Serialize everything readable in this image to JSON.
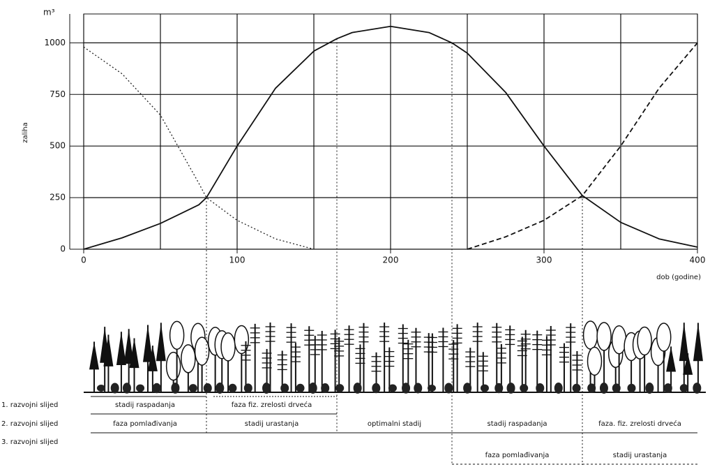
{
  "chart_data": {
    "type": "line",
    "y_unit": "m³",
    "y_label": "zaliha",
    "x_label": "dob (godine)",
    "x": [
      0,
      25,
      50,
      75,
      80,
      100,
      125,
      150,
      165,
      175,
      200,
      225,
      240,
      250,
      275,
      300,
      325,
      350,
      375,
      400
    ],
    "series": [
      {
        "color": "#222222",
        "dash": "dotted",
        "values": [
          980,
          850,
          650,
          320,
          250,
          140,
          50,
          0,
          null,
          null,
          null,
          null,
          null,
          null,
          null,
          null,
          null,
          null,
          null,
          null
        ]
      },
      {
        "color": "#111111",
        "dash": "solid",
        "values": [
          0,
          55,
          125,
          215,
          250,
          500,
          780,
          960,
          1020,
          1050,
          1080,
          1050,
          1000,
          950,
          760,
          500,
          260,
          130,
          50,
          10
        ]
      },
      {
        "color": "#111111",
        "dash": "dashed",
        "values": [
          null,
          null,
          null,
          null,
          null,
          null,
          null,
          null,
          null,
          null,
          null,
          null,
          null,
          0,
          60,
          140,
          260,
          500,
          780,
          1000
        ]
      }
    ],
    "xlim": [
      0,
      400
    ],
    "xticks": [
      0,
      100,
      200,
      300,
      400
    ],
    "x_gridlines": [
      0,
      50,
      100,
      150,
      200,
      250,
      300,
      350,
      400
    ],
    "ylim": [
      0,
      1140
    ],
    "yticks": [
      0,
      250,
      500,
      750,
      1000
    ],
    "grid": true,
    "rows": [
      {
        "label": "1. razvojni slijed",
        "stages": [
          {
            "name": "stadij raspadanja",
            "start": 0,
            "end": 80
          },
          {
            "name": "faza fiz. zrelosti drveća",
            "start": 80,
            "end": 165
          }
        ]
      },
      {
        "label": "2. razvojni slijed",
        "stages": [
          {
            "name": "faza pomlađivanja",
            "start": 0,
            "end": 80
          },
          {
            "name": "stadij urastanja",
            "start": 80,
            "end": 165
          },
          {
            "name": "optimalni stadij",
            "start": 165,
            "end": 240
          },
          {
            "name": "stadij raspadanja",
            "start": 240,
            "end": 325
          },
          {
            "name": "faza. fiz. zrelosti drveća",
            "start": 325,
            "end": 400
          }
        ]
      },
      {
        "label": "3. razvojni slijed",
        "stages": [
          {
            "name": "faza pomlađivanja",
            "start": 240,
            "end": 325
          },
          {
            "name": "stadij urastanja",
            "start": 325,
            "end": 400
          }
        ]
      }
    ]
  }
}
